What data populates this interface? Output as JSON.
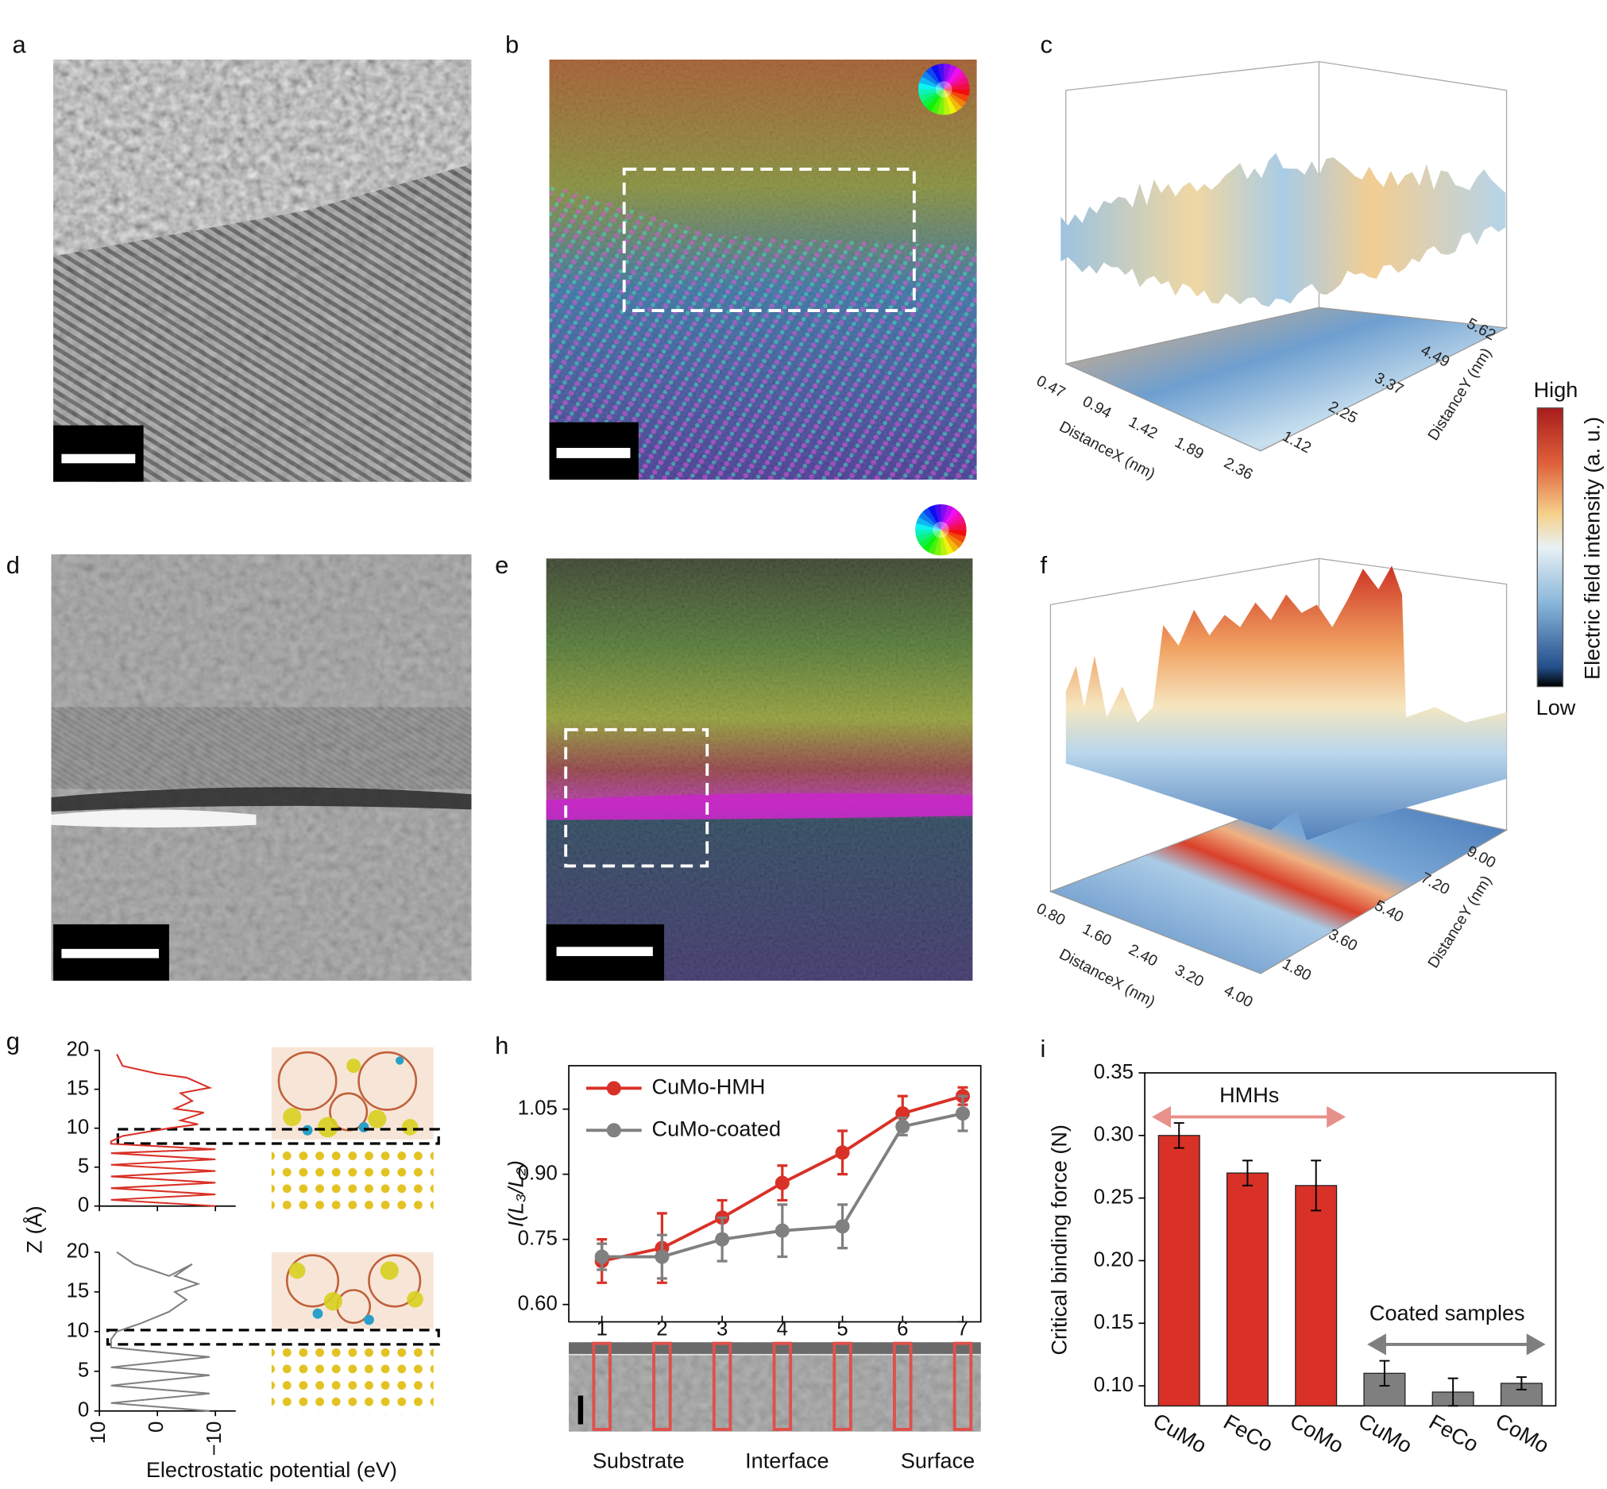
{
  "panel_labels": [
    "a",
    "b",
    "c",
    "d",
    "e",
    "f",
    "g",
    "h",
    "i"
  ],
  "panel_c": {
    "xlabel": "DistanceX (nm)",
    "ylabel": "DistanceY (nm)",
    "xticks": [
      "0.47",
      "0.94",
      "1.42",
      "1.89",
      "2.36"
    ],
    "yticks": [
      "1.12",
      "2.25",
      "3.37",
      "4.49",
      "5.62"
    ]
  },
  "panel_f": {
    "xlabel": "DistanceX (nm)",
    "ylabel": "DistanceY (nm)",
    "xticks": [
      "0.80",
      "1.60",
      "2.40",
      "3.20",
      "4.00"
    ],
    "yticks": [
      "1.80",
      "3.60",
      "5.40",
      "7.20",
      "9.00"
    ]
  },
  "colorbar": {
    "high": "High",
    "low": "Low",
    "label": "Electric field intensity (a. u.)"
  },
  "chart_data": [
    {
      "type": "profile",
      "xlim": [
        10,
        -13.5
      ],
      "ylim": [
        0,
        20
      ],
      "yticks": [
        0,
        5,
        10,
        15,
        20
      ],
      "series": [
        {
          "color": "#d93127",
          "x": [
            7,
            6,
            0,
            -5,
            -9,
            -4,
            -6,
            -3,
            -8,
            -4,
            -7,
            -2,
            6,
            8,
            8,
            -10,
            8,
            -10,
            8,
            -10,
            8,
            -10,
            8,
            -10,
            8,
            -10
          ],
          "values": [
            19.5,
            18,
            17,
            16.5,
            15.2,
            14.5,
            13.5,
            12.5,
            12,
            11,
            10.5,
            10,
            9,
            8.3,
            8,
            7.3,
            6.8,
            6,
            5.3,
            4.5,
            3.8,
            3,
            2.3,
            1.5,
            0.8,
            0
          ]
        }
      ]
    },
    {
      "type": "profile",
      "xlim": [
        10,
        -13.5
      ],
      "ylim": [
        0,
        20
      ],
      "yticks": [
        0,
        5,
        10,
        15,
        20
      ],
      "xticks": [
        10,
        0,
        {
          "value": -10,
          "label": "−10"
        }
      ],
      "xlabel": "Electrostatic potential (eV)",
      "ylabel": "Z (Å)",
      "series": [
        {
          "color": "#808080",
          "x": [
            7,
            4,
            -2,
            -6,
            -3,
            -7,
            -3,
            -5,
            -2,
            3,
            7,
            8,
            8,
            -9,
            8,
            -9,
            8,
            -9,
            8,
            -9
          ],
          "values": [
            20,
            18.5,
            17,
            18.5,
            17,
            16,
            15,
            14,
            12.5,
            11,
            10,
            9,
            8,
            6.8,
            5.5,
            4.5,
            3.2,
            2.2,
            1,
            0
          ]
        }
      ]
    },
    {
      "type": "line",
      "ylabel": "I(L₃/L₂)",
      "x": [
        1,
        2,
        3,
        4,
        5,
        6,
        7
      ],
      "xlim": [
        0.45,
        7.3
      ],
      "xticks": [
        1,
        2,
        3,
        4,
        5,
        6,
        7
      ],
      "ylim": [
        0.56,
        1.15
      ],
      "yticks": [
        {
          "value": 0.6,
          "label": "0.60"
        },
        0.75,
        {
          "value": 0.9,
          "label": "0.90"
        },
        1.05
      ],
      "series": [
        {
          "name": "CuMo-HMH",
          "color": "#d93127",
          "values": [
            0.7,
            0.73,
            0.8,
            0.88,
            0.95,
            1.04,
            1.08
          ],
          "errors": [
            0.05,
            0.08,
            0.04,
            0.04,
            0.05,
            0.04,
            0.02
          ]
        },
        {
          "name": "CuMo-coated",
          "color": "#808080",
          "values": [
            0.71,
            0.71,
            0.75,
            0.77,
            0.78,
            1.01,
            1.04
          ],
          "errors": [
            0.03,
            0.05,
            0.05,
            0.06,
            0.05,
            0.02,
            0.04
          ]
        }
      ],
      "annotations": [
        "Substrate",
        "Interface",
        "Surface"
      ]
    },
    {
      "type": "bar",
      "ylabel": "Critical binding force (N)",
      "categories": [
        "CuMo",
        "FeCo",
        "CoMo",
        "CuMo",
        "FeCo",
        "CoMo"
      ],
      "values": [
        0.3,
        0.27,
        0.26,
        0.11,
        0.095,
        0.102
      ],
      "errors": [
        0.01,
        0.01,
        0.02,
        0.01,
        0.011,
        0.005
      ],
      "colors": [
        "#d93127",
        "#d93127",
        "#d93127",
        "#7f7f7f",
        "#7f7f7f",
        "#7f7f7f"
      ],
      "ylim": [
        0.084,
        0.35
      ],
      "yticks": [
        {
          "value": 0.1,
          "label": "0.10"
        },
        0.15,
        {
          "value": 0.2,
          "label": "0.20"
        },
        0.25,
        {
          "value": 0.3,
          "label": "0.30"
        },
        0.35
      ],
      "annotations": [
        "HMHs",
        "Coated samples"
      ]
    }
  ]
}
